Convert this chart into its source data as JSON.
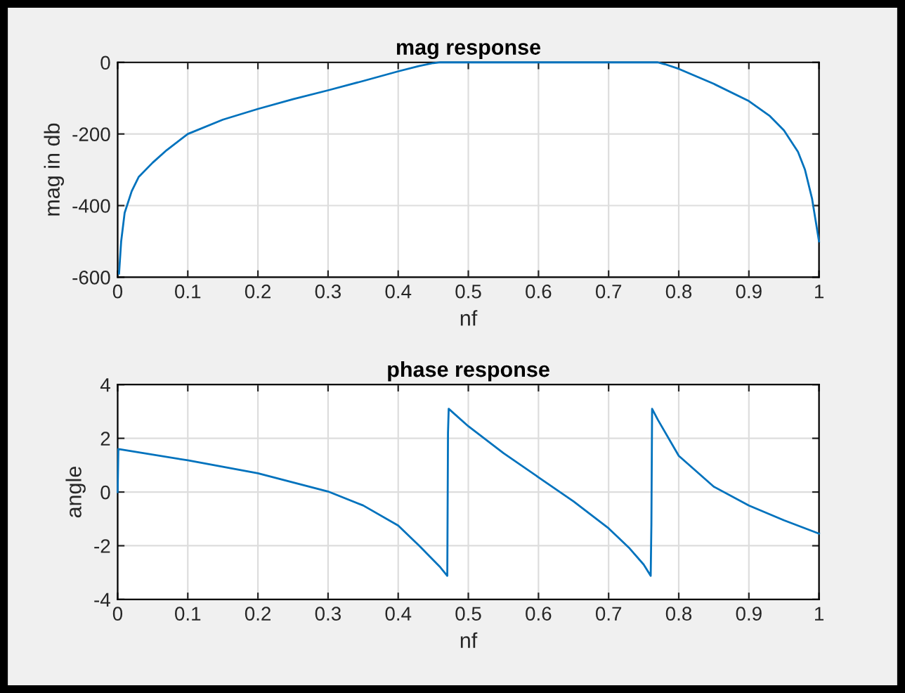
{
  "chart_data": [
    {
      "type": "line",
      "title": "mag response",
      "xlabel": "nf",
      "ylabel": "mag in db",
      "xlim": [
        0,
        1
      ],
      "ylim": [
        -600,
        0
      ],
      "xticks": [
        0,
        0.1,
        0.2,
        0.3,
        0.4,
        0.5,
        0.6,
        0.7,
        0.8,
        0.9,
        1
      ],
      "yticks": [
        -600,
        -400,
        -200,
        0
      ],
      "grid": true,
      "series": [
        {
          "color": "#0072bd",
          "x": [
            0.002,
            0.005,
            0.01,
            0.02,
            0.03,
            0.05,
            0.07,
            0.1,
            0.15,
            0.2,
            0.25,
            0.3,
            0.35,
            0.4,
            0.43,
            0.45,
            0.46,
            0.5,
            0.6,
            0.7,
            0.77,
            0.78,
            0.8,
            0.85,
            0.9,
            0.93,
            0.95,
            0.97,
            0.98,
            0.99,
            0.995,
            1
          ],
          "values": [
            -590,
            -500,
            -420,
            -360,
            -320,
            -280,
            -245,
            -200,
            -160,
            -130,
            -103,
            -78,
            -52,
            -25,
            -10,
            -2,
            0,
            0,
            0,
            0,
            0,
            -5,
            -18,
            -60,
            -108,
            -150,
            -190,
            -250,
            -300,
            -380,
            -440,
            -500
          ]
        }
      ]
    },
    {
      "type": "line",
      "title": "phase response",
      "xlabel": "nf",
      "ylabel": "angle",
      "xlim": [
        0,
        1
      ],
      "ylim": [
        -4,
        4
      ],
      "xticks": [
        0,
        0.1,
        0.2,
        0.3,
        0.4,
        0.5,
        0.6,
        0.7,
        0.8,
        0.9,
        1
      ],
      "yticks": [
        -4,
        -2,
        0,
        2,
        4
      ],
      "grid": true,
      "series": [
        {
          "color": "#0072bd",
          "x": [
            0,
            0.001,
            0.1,
            0.2,
            0.3,
            0.35,
            0.4,
            0.43,
            0.46,
            0.47,
            0.471,
            0.472,
            0.5,
            0.55,
            0.6,
            0.65,
            0.7,
            0.73,
            0.75,
            0.76,
            0.761,
            0.762,
            0.77,
            0.8,
            0.85,
            0.9,
            0.95,
            1
          ],
          "values": [
            0,
            1.6,
            1.18,
            0.7,
            0.02,
            -0.5,
            -1.25,
            -2.0,
            -2.8,
            -3.12,
            2.2,
            3.1,
            2.45,
            1.45,
            0.55,
            -0.35,
            -1.35,
            -2.1,
            -2.7,
            -3.12,
            -1.2,
            3.1,
            2.7,
            1.35,
            0.2,
            -0.5,
            -1.05,
            -1.55
          ]
        }
      ]
    }
  ]
}
